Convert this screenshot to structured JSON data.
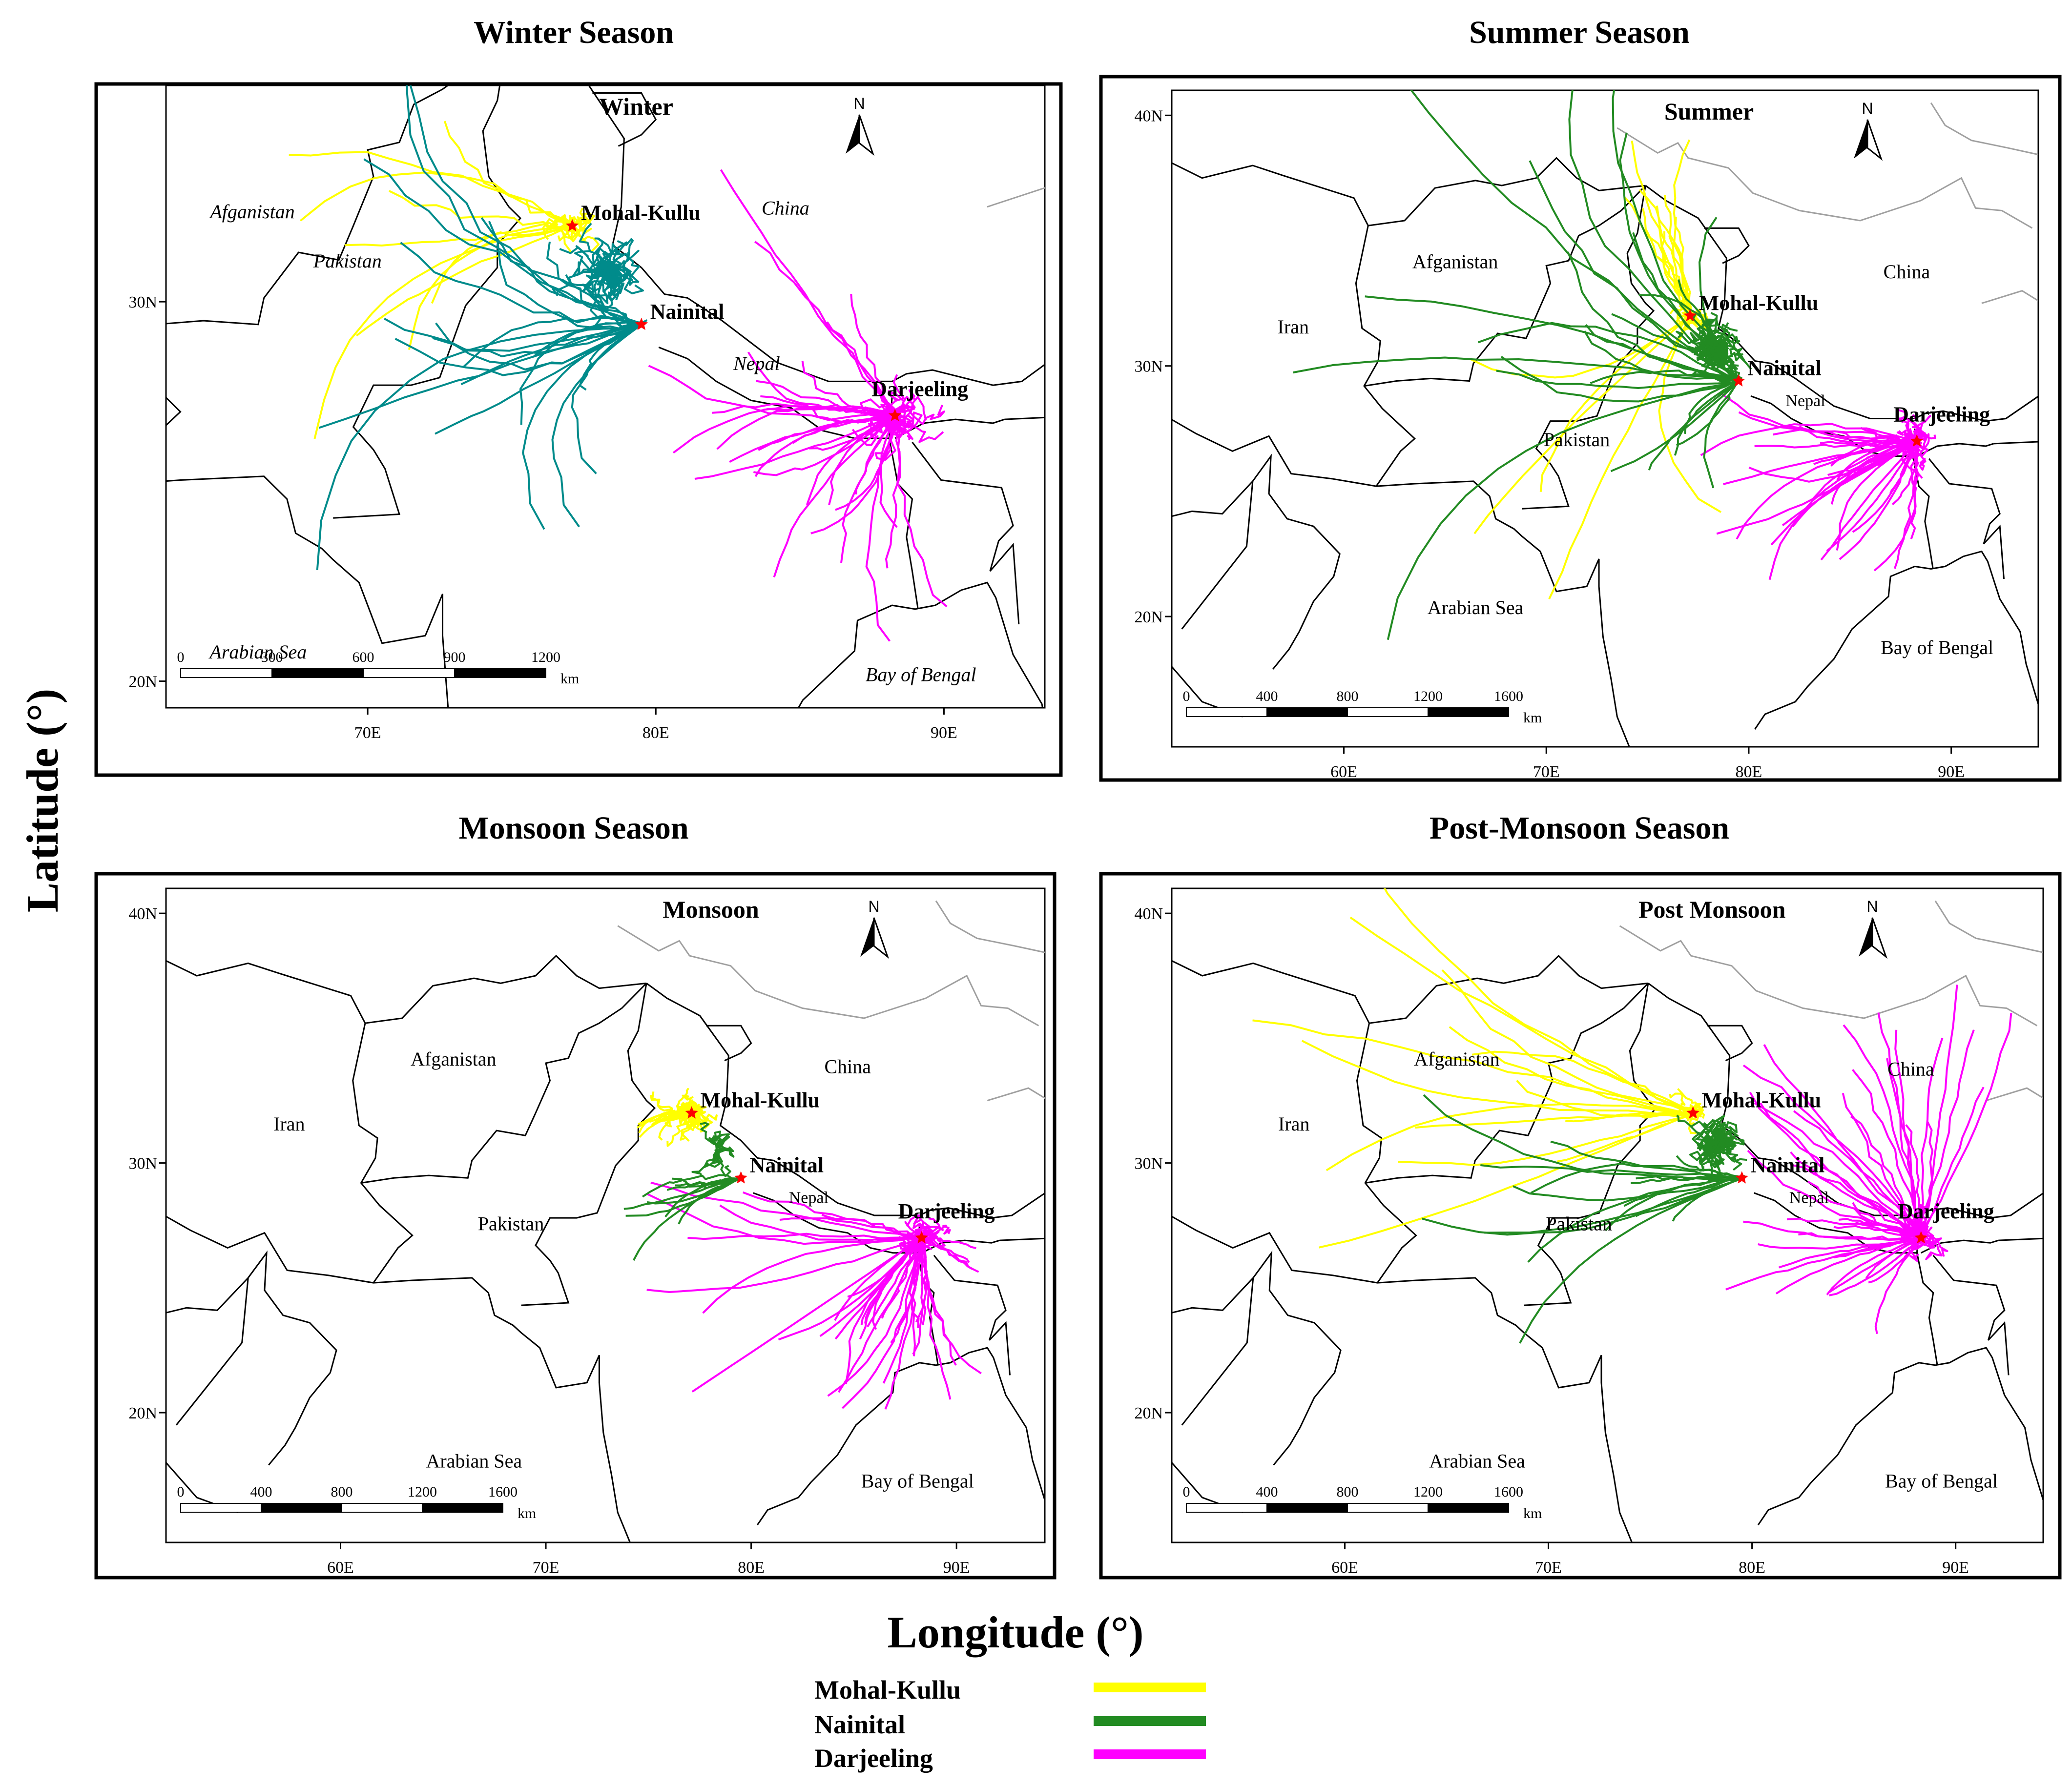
{
  "figure": {
    "y_axis_label": "Latitude (°)",
    "x_axis_label": "Longitude (°)",
    "legend": [
      {
        "label": "Mohal-Kullu",
        "color": "#ffff00"
      },
      {
        "label": "Nainital",
        "color": "#228b22"
      },
      {
        "label": "Darjeeling",
        "color": "#ff00ff"
      }
    ]
  },
  "colors": {
    "mohal_kullu": "#ffff00",
    "nainital": "#228b22",
    "darjeeling": "#ff00ff",
    "winter_nainital": "#008b8b",
    "station_marker": "#ff0000",
    "country_border": "#000000",
    "china_internal_border": "#a0a0a0"
  },
  "panels": [
    {
      "title": "Winter Season",
      "map_label": "Winter",
      "lon_ticks": [
        "70E",
        "80E",
        "90E"
      ],
      "lat_ticks": [
        "20N",
        "30N"
      ],
      "scalebar": {
        "ticks": [
          "0",
          "300",
          "600",
          "900",
          "1200"
        ],
        "unit": "km"
      },
      "region_labels": [
        "Afganistan",
        "Pakistan",
        "China",
        "Nepal",
        "Arabian Sea",
        "Bay of Bengal"
      ],
      "stations": [
        "Mohal-Kullu",
        "Nainital",
        "Darjeeling"
      ],
      "north_arrow": "N",
      "stations_geo": [
        {
          "name": "Mohal-Kullu",
          "lon": 77.1,
          "lat": 32.0
        },
        {
          "name": "Nainital",
          "lon": 79.5,
          "lat": 29.4
        },
        {
          "name": "Darjeeling",
          "lon": 88.3,
          "lat": 27.0
        }
      ]
    },
    {
      "title": "Summer Season",
      "map_label": "Summer",
      "lon_ticks": [
        "60E",
        "70E",
        "80E",
        "90E"
      ],
      "lat_ticks": [
        "20N",
        "30N",
        "40N"
      ],
      "scalebar": {
        "ticks": [
          "0",
          "400",
          "800",
          "1200",
          "1600"
        ],
        "unit": "km"
      },
      "region_labels": [
        "Iran",
        "Afganistan",
        "Pakistan",
        "China",
        "Nepal",
        "Arabian Sea",
        "Bay of Bengal"
      ],
      "stations": [
        "Mohal-Kullu",
        "Nainital",
        "Darjeeling"
      ],
      "north_arrow": "N",
      "stations_geo": [
        {
          "name": "Mohal-Kullu",
          "lon": 77.1,
          "lat": 32.0
        },
        {
          "name": "Nainital",
          "lon": 79.5,
          "lat": 29.4
        },
        {
          "name": "Darjeeling",
          "lon": 88.3,
          "lat": 27.0
        }
      ]
    },
    {
      "title": "Monsoon Season",
      "map_label": "Monsoon",
      "lon_ticks": [
        "60E",
        "70E",
        "80E",
        "90E"
      ],
      "lat_ticks": [
        "20N",
        "30N",
        "40N"
      ],
      "scalebar": {
        "ticks": [
          "0",
          "400",
          "800",
          "1200",
          "1600"
        ],
        "unit": "km"
      },
      "region_labels": [
        "Iran",
        "Afganistan",
        "Pakistan",
        "China",
        "Nepal",
        "Arabian Sea",
        "Bay of Bengal"
      ],
      "stations": [
        "Mohal-Kullu",
        "Nainital",
        "Darjeeling"
      ],
      "north_arrow": "N",
      "stations_geo": [
        {
          "name": "Mohal-Kullu",
          "lon": 77.1,
          "lat": 32.0
        },
        {
          "name": "Nainital",
          "lon": 79.5,
          "lat": 29.4
        },
        {
          "name": "Darjeeling",
          "lon": 88.3,
          "lat": 27.0
        }
      ]
    },
    {
      "title": "Post-Monsoon Season",
      "map_label": "Post Monsoon",
      "lon_ticks": [
        "60E",
        "70E",
        "80E",
        "90E"
      ],
      "lat_ticks": [
        "20N",
        "30N",
        "40N"
      ],
      "scalebar": {
        "ticks": [
          "0",
          "400",
          "800",
          "1200",
          "1600"
        ],
        "unit": "km"
      },
      "region_labels": [
        "Iran",
        "Afganistan",
        "Pakistan",
        "China",
        "Nepal",
        "Arabian Sea",
        "Bay of Bengal"
      ],
      "stations": [
        "Mohal-Kullu",
        "Nainital",
        "Darjeeling"
      ],
      "north_arrow": "N",
      "stations_geo": [
        {
          "name": "Mohal-Kullu",
          "lon": 77.1,
          "lat": 32.0
        },
        {
          "name": "Nainital",
          "lon": 79.5,
          "lat": 29.4
        },
        {
          "name": "Darjeeling",
          "lon": 88.3,
          "lat": 27.0
        }
      ]
    }
  ]
}
